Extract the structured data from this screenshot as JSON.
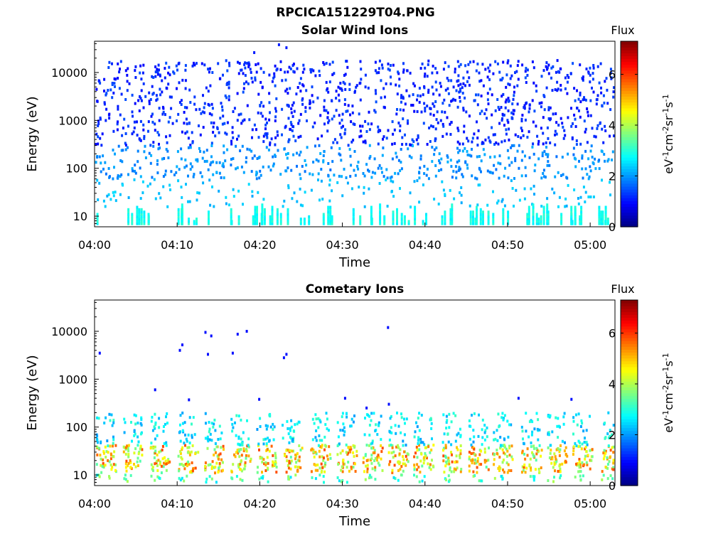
{
  "figure": {
    "title": "RPCICA151229T04.PNG"
  },
  "colorbar": {
    "label": "Flux",
    "unit_label": "eV-1cm-2sr-1s-1",
    "ticks": [
      "0",
      "2",
      "4",
      "6"
    ],
    "range": [
      0,
      7.3
    ],
    "colormap": "jet"
  },
  "chart_data": [
    {
      "type": "heatmap",
      "title": "Solar Wind Ions",
      "xlabel": "Time",
      "ylabel": "Energy (eV)",
      "yscale": "log",
      "ylim": [
        6,
        45000
      ],
      "xlim": [
        "04:00",
        "05:03"
      ],
      "x_ticks": [
        "04:00",
        "04:10",
        "04:20",
        "04:30",
        "04:40",
        "04:50",
        "05:00"
      ],
      "y_ticks": [
        "10",
        "100",
        "1000",
        "10000"
      ],
      "description_of_values": "Sparse scattered flux pixels over all energies; flux ~1 (blue) above ~300 eV, ~2 (cyan) around 20-300 eV, ~2.5-3 (green) near 6-20 eV.",
      "bands": [
        {
          "energy_range": [
            300,
            20000
          ],
          "flux": 1.2,
          "density": "sparse"
        },
        {
          "energy_range": [
            60,
            300
          ],
          "flux": 2.0,
          "density": "sparse"
        },
        {
          "energy_range": [
            15,
            60
          ],
          "flux": 2.3,
          "density": "sparse"
        },
        {
          "energy_range": [
            6,
            15
          ],
          "flux": 2.8,
          "density": "sparse"
        }
      ]
    },
    {
      "type": "heatmap",
      "title": "Cometary Ions",
      "xlabel": "Time",
      "ylabel": "Energy (eV)",
      "yscale": "log",
      "ylim": [
        6,
        45000
      ],
      "xlim": [
        "04:00",
        "05:03"
      ],
      "x_ticks": [
        "04:00",
        "04:10",
        "04:20",
        "04:30",
        "04:40",
        "04:50",
        "05:00"
      ],
      "y_ticks": [
        "10",
        "100",
        "1000",
        "10000"
      ],
      "description_of_values": "Periodic bursts (~every 3.2 min) of cometary ions; flux up to ~5-6 (yellow/orange) at 10-40 eV, ~2-3 (cyan/green) at 40-200 eV, isolated blue points up to ~12000 eV.",
      "burst_period_min": 3.2,
      "bands": [
        {
          "energy_range": [
            10,
            40
          ],
          "flux": 4.8,
          "density": "periodic bursts"
        },
        {
          "energy_range": [
            40,
            200
          ],
          "flux": 2.6,
          "density": "periodic bursts"
        },
        {
          "energy_range": [
            300,
            12000
          ],
          "flux": 1.0,
          "density": "isolated"
        }
      ]
    }
  ]
}
